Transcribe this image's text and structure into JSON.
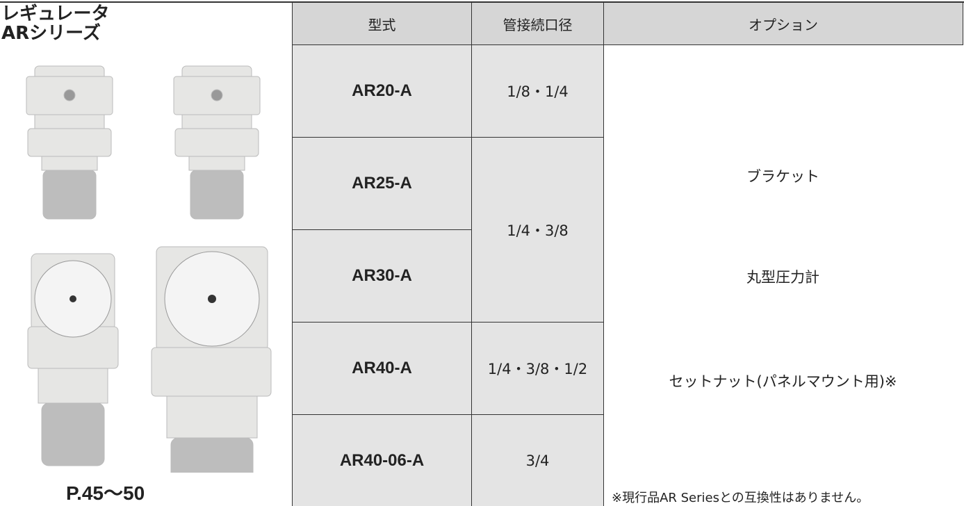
{
  "header": {
    "title": [
      "レギュレータ",
      "ARシリーズ"
    ],
    "page_ref": "P.45〜50"
  },
  "table": {
    "headers": [
      "型式",
      "管接続口径",
      "オプション"
    ],
    "models": [
      "AR20-A",
      "AR25-A",
      "AR30-A",
      "AR40-A",
      "AR40-06-A"
    ],
    "ports": [
      "1/8・1/4",
      "1/4・3/8",
      "1/4・3/8・1/2",
      "3/4"
    ],
    "options": [
      "ブラケット",
      "丸型圧力計",
      "セットナット(パネルマウント用)※"
    ],
    "note": "※現行品AR Seriesとの互換性はありません。"
  }
}
